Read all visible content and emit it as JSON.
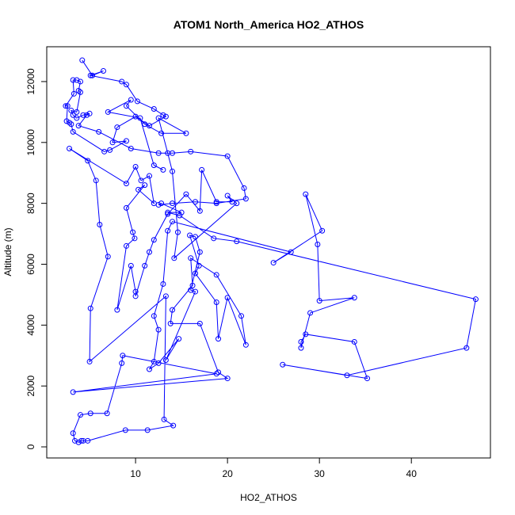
{
  "chart_data": {
    "type": "line",
    "title": "ATOM1 North_America HO2_ATHOS",
    "x_label": "HO2_ATHOS",
    "y_label": "Altitude (m)",
    "color": "#0000ff",
    "x": [
      4.2,
      5.3,
      6.5,
      5.1,
      8.5,
      9.0,
      10.2,
      12.0,
      13.0,
      13.3,
      11.5,
      10.0,
      8.0,
      7.5,
      9.0,
      7.2,
      6.6,
      3.2,
      3.0,
      2.8,
      2.5,
      2.6,
      2.4,
      3.3,
      3.2,
      3.6,
      4.0,
      3.8,
      4.0,
      3.6,
      3.0,
      3.2,
      3.6,
      4.3,
      5.0,
      4.7,
      3.8,
      6.0,
      9.5,
      12.5,
      14.0,
      16.0,
      20.0,
      21.8,
      22.0,
      18.8,
      16.5,
      14.0,
      12.5,
      12.8,
      15.0,
      13.5,
      14.8,
      18.5,
      21.0,
      47.0,
      46.0,
      33.0,
      26.0,
      35.2,
      33.8,
      28.5,
      28.0,
      28.0,
      29.0,
      33.8,
      30.0,
      29.8,
      28.5,
      30.3,
      25.0,
      26.9,
      14.0,
      13.5,
      13.0,
      12.0,
      12.5,
      12.0,
      11.5,
      12.5,
      14.7,
      13.3,
      16.5,
      16.0,
      17.0,
      16.5,
      15.9,
      16.9,
      16.5,
      18.8,
      19.0,
      20.0,
      22.0,
      21.5,
      18.8,
      16.0,
      16.2,
      14.0,
      13.8,
      17.0,
      19.0,
      20.0,
      3.2,
      18.8,
      8.6,
      8.5,
      6.9,
      5.1,
      4.0,
      3.2,
      3.4,
      3.8,
      4.1,
      4.3,
      4.8,
      8.9,
      11.3,
      14.1,
      13.1,
      13.3,
      5.0,
      5.1,
      7.0,
      6.1,
      5.7,
      4.8,
      2.8,
      9.0,
      10.0,
      10.6,
      11.5,
      12.0,
      10.3,
      11.0,
      9.0,
      9.7,
      9.9,
      9.0,
      8.0,
      9.5,
      10.0,
      10.0,
      11.0,
      11.5,
      12.0,
      13.5,
      15.5,
      17.0,
      17.2,
      18.8,
      20.5,
      20.0,
      21.0,
      14.2,
      14.6,
      14.0,
      13.5,
      12.5,
      15.5,
      12.8,
      11.0,
      9.0,
      9.5,
      7.0,
      10.5,
      12.0,
      13.0
    ],
    "values": [
      12700,
      12200,
      12350,
      12200,
      12000,
      11900,
      11350,
      11100,
      10900,
      10850,
      10550,
      10850,
      10500,
      10000,
      10050,
      9750,
      9700,
      10350,
      10600,
      10650,
      10700,
      11200,
      11200,
      11600,
      12050,
      12050,
      12000,
      11700,
      11650,
      11000,
      11050,
      10900,
      10800,
      10900,
      10950,
      10900,
      10550,
      10350,
      9800,
      9650,
      9650,
      9700,
      9550,
      8500,
      8150,
      8000,
      8050,
      8000,
      7950,
      8000,
      7700,
      7700,
      7600,
      6850,
      6750,
      4850,
      3250,
      2350,
      2700,
      2250,
      3450,
      3700,
      3450,
      3250,
      4400,
      4900,
      4800,
      6650,
      8300,
      7100,
      6050,
      6400,
      7400,
      7100,
      5350,
      4300,
      3850,
      2800,
      2550,
      2750,
      3550,
      2850,
      5100,
      5150,
      6400,
      6900,
      6950,
      5950,
      5700,
      4750,
      3550,
      4900,
      3350,
      4300,
      5650,
      6200,
      5300,
      4500,
      4050,
      4050,
      2450,
      2250,
      1800,
      2400,
      3000,
      2750,
      1100,
      1100,
      1050,
      450,
      200,
      150,
      200,
      200,
      200,
      550,
      550,
      700,
      900,
      4950,
      2800,
      4550,
      6250,
      7300,
      8750,
      9400,
      9800,
      8650,
      9200,
      8750,
      8900,
      8000,
      8450,
      8600,
      7850,
      7050,
      6850,
      6600,
      4500,
      5950,
      5100,
      4950,
      5950,
      6400,
      6800,
      7650,
      8300,
      7750,
      9100,
      8050,
      8050,
      8250,
      8000,
      6200,
      7050,
      9050,
      9650,
      10800,
      10300,
      10300,
      10600,
      11200,
      11400,
      11000,
      10800,
      9250,
      9100
    ],
    "xlim": [
      0.34,
      48.6
    ],
    "ylim": [
      -364,
      13144
    ],
    "xticks": [
      10,
      20,
      30,
      40
    ],
    "yticks": [
      0,
      2000,
      4000,
      6000,
      8000,
      10000,
      12000
    ]
  }
}
